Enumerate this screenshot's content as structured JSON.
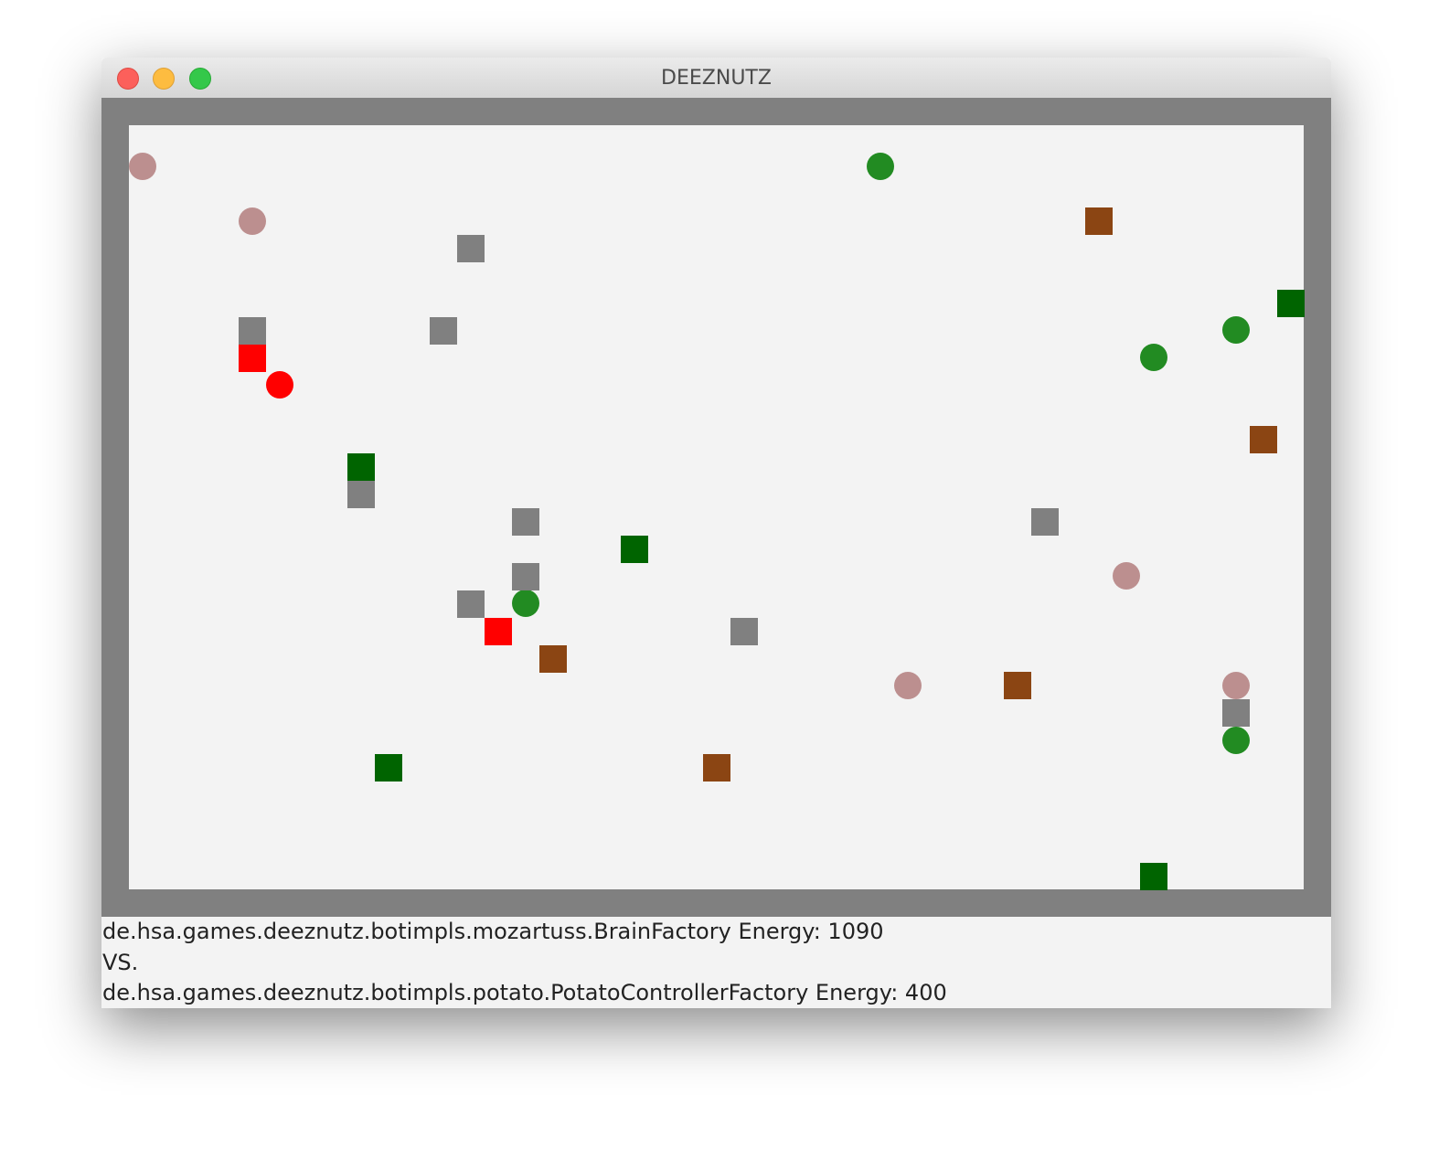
{
  "window": {
    "title": "DEEZNUTZ"
  },
  "status": {
    "lines": [
      "de.hsa.games.deeznutz.botimpls.mozartuss.BrainFactory Energy: 1090",
      "VS.",
      "de.hsa.games.deeznutz.botimpls.potato.PotatoControllerFactory Energy: 400"
    ]
  }
}
